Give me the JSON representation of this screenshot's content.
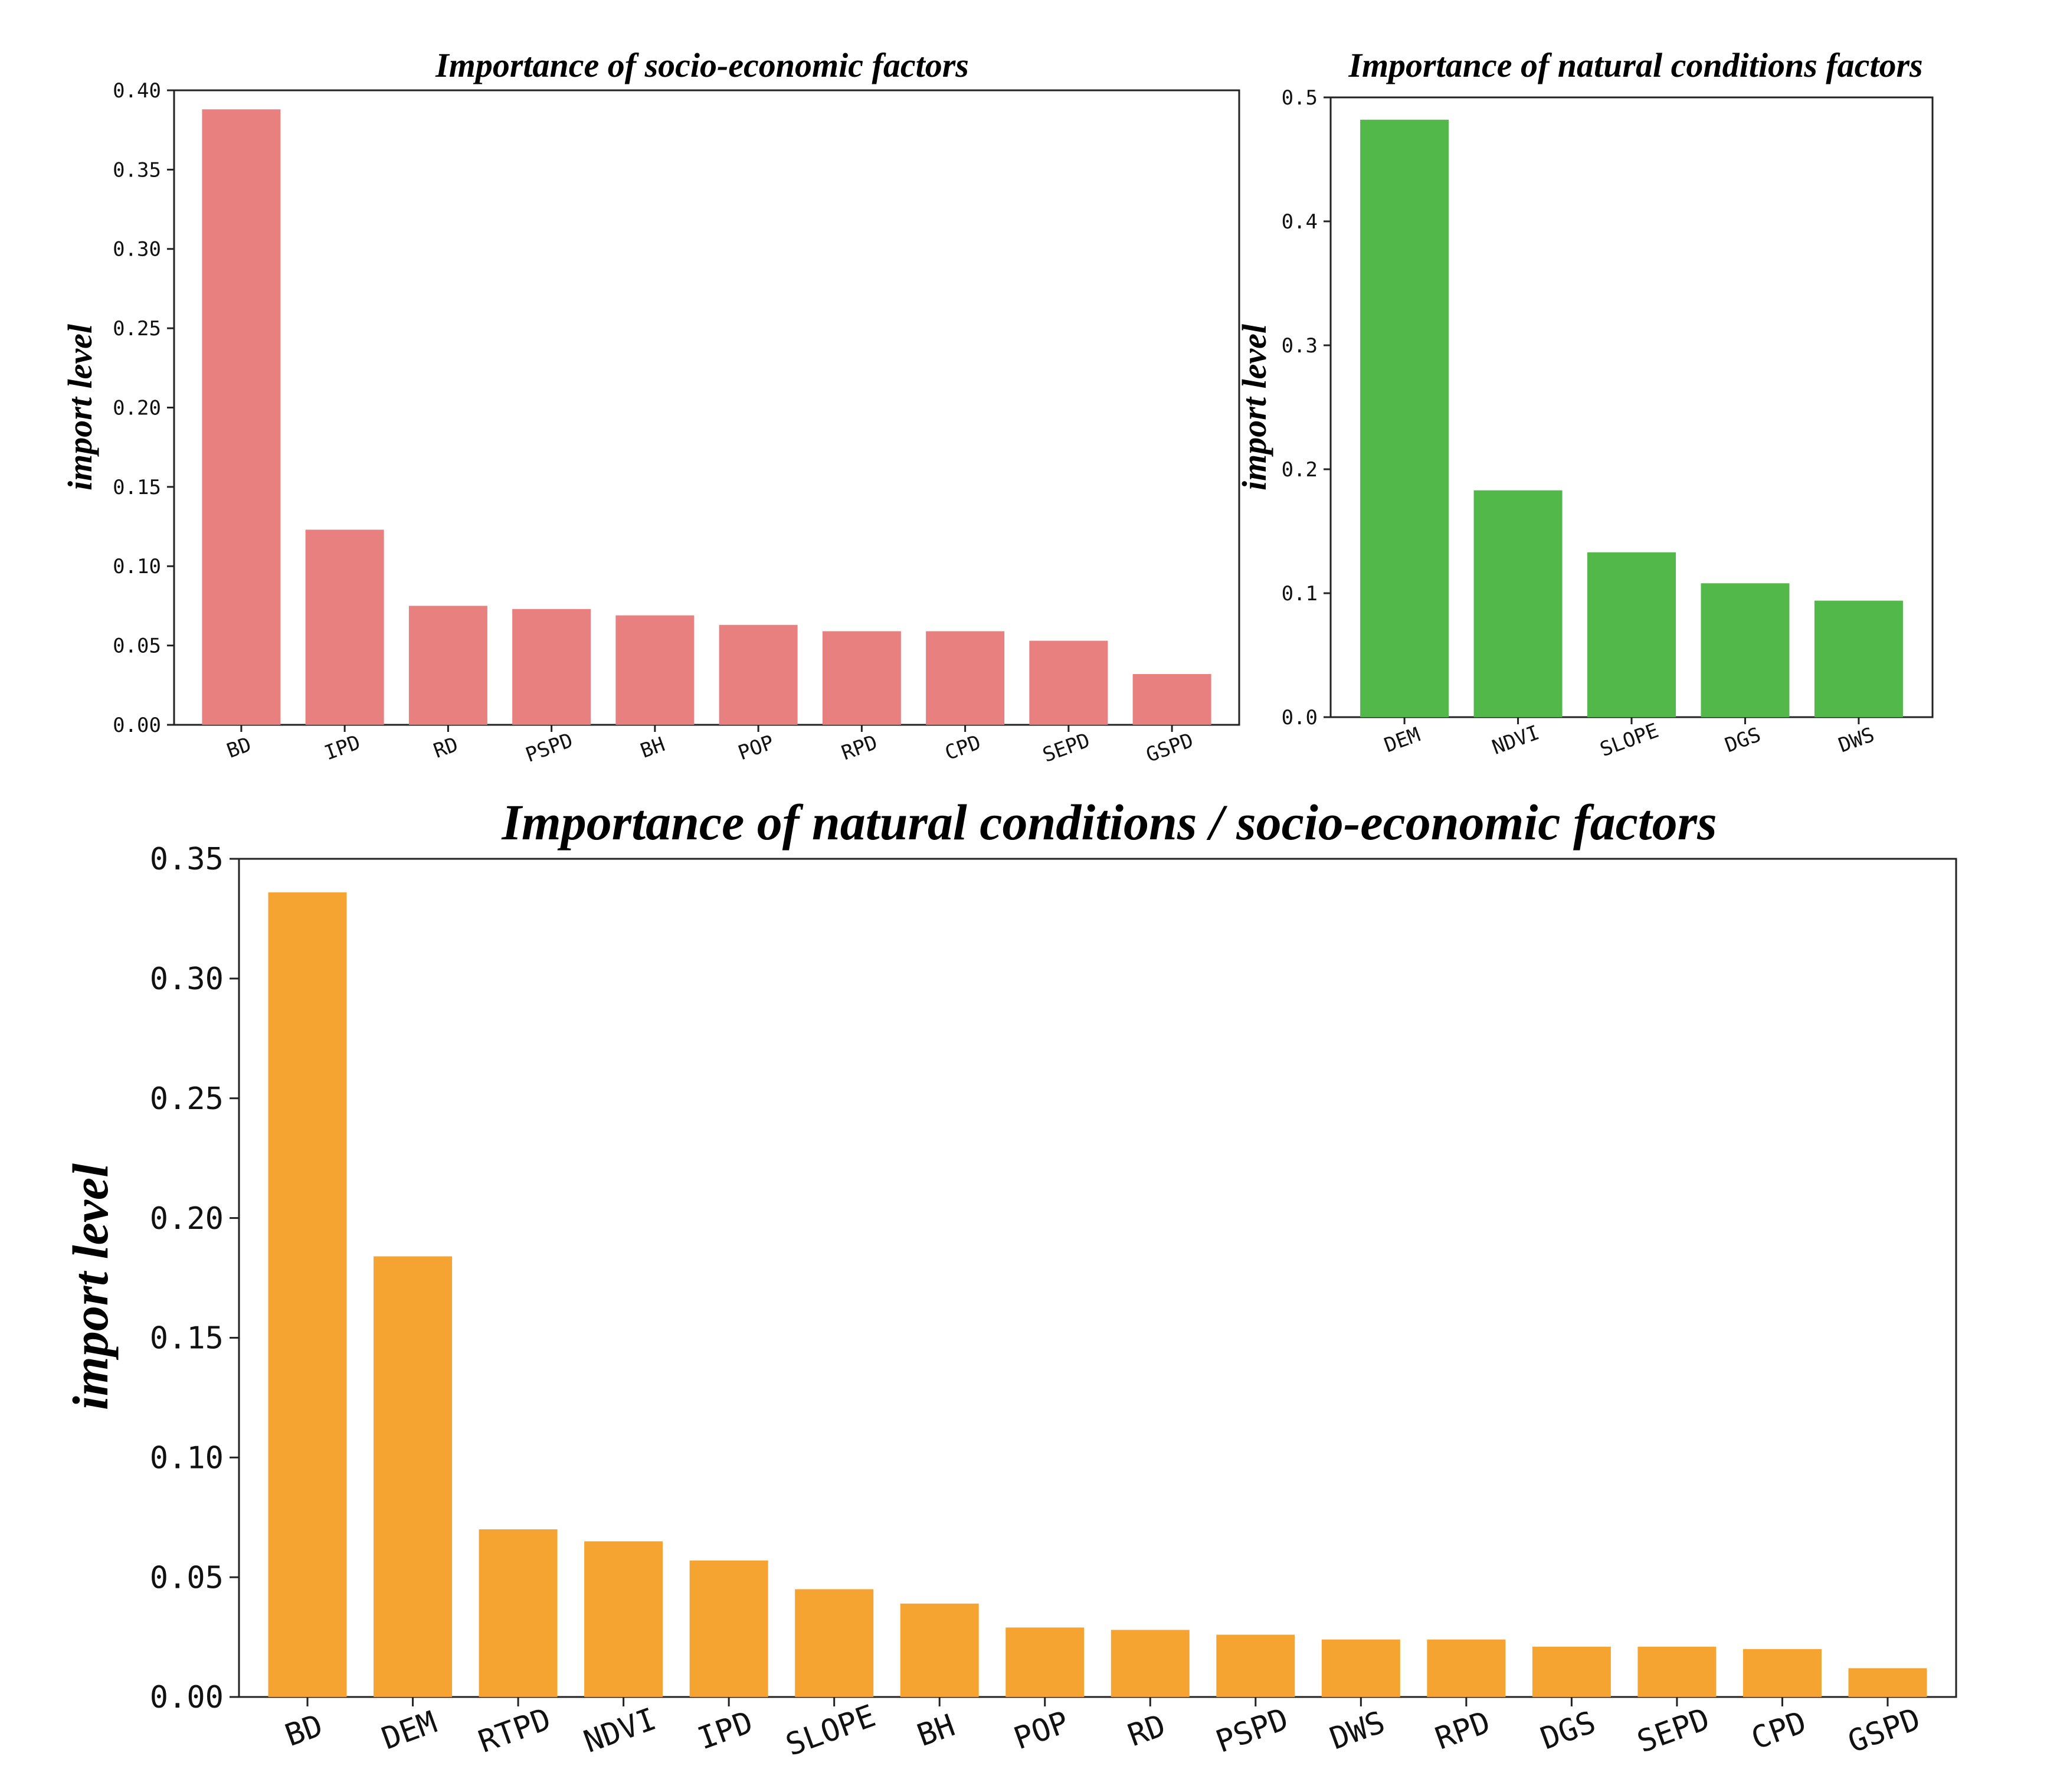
{
  "chart_data": [
    {
      "type": "bar",
      "title": "Importance of socio-economic factors",
      "xlabel": "",
      "ylabel": "import level",
      "ylim": [
        0,
        0.4
      ],
      "yticks": [
        "0.00",
        "0.05",
        "0.10",
        "0.15",
        "0.20",
        "0.25",
        "0.30",
        "0.35",
        "0.40"
      ],
      "categories": [
        "BD",
        "IPD",
        "RD",
        "PSPD",
        "BH",
        "POP",
        "RPD",
        "CPD",
        "SEPD",
        "GSPD"
      ],
      "values": [
        0.388,
        0.123,
        0.075,
        0.073,
        0.069,
        0.063,
        0.059,
        0.059,
        0.053,
        0.032
      ],
      "color": "#e88080"
    },
    {
      "type": "bar",
      "title": "Importance of natural conditions factors",
      "xlabel": "",
      "ylabel": "import level",
      "ylim": [
        0,
        0.5
      ],
      "yticks": [
        "0.0",
        "0.1",
        "0.2",
        "0.3",
        "0.4",
        "0.5"
      ],
      "categories": [
        "DEM",
        "NDVI",
        "SLOPE",
        "DGS",
        "DWS"
      ],
      "values": [
        0.482,
        0.183,
        0.133,
        0.108,
        0.094
      ],
      "color": "#53b84a"
    },
    {
      "type": "bar",
      "title": "Importance of natural conditions / socio-economic factors",
      "xlabel": "",
      "ylabel": "import level",
      "ylim": [
        0,
        0.35
      ],
      "yticks": [
        "0.00",
        "0.05",
        "0.10",
        "0.15",
        "0.20",
        "0.25",
        "0.30",
        "0.35"
      ],
      "categories": [
        "BD",
        "DEM",
        "RTPD",
        "NDVI",
        "IPD",
        "SLOPE",
        "BH",
        "POP",
        "RD",
        "PSPD",
        "DWS",
        "RPD",
        "DGS",
        "SEPD",
        "CPD",
        "GSPD"
      ],
      "values": [
        0.336,
        0.184,
        0.07,
        0.065,
        0.057,
        0.045,
        0.039,
        0.029,
        0.028,
        0.026,
        0.024,
        0.024,
        0.021,
        0.021,
        0.02,
        0.012
      ],
      "color": "#f5a431"
    }
  ]
}
